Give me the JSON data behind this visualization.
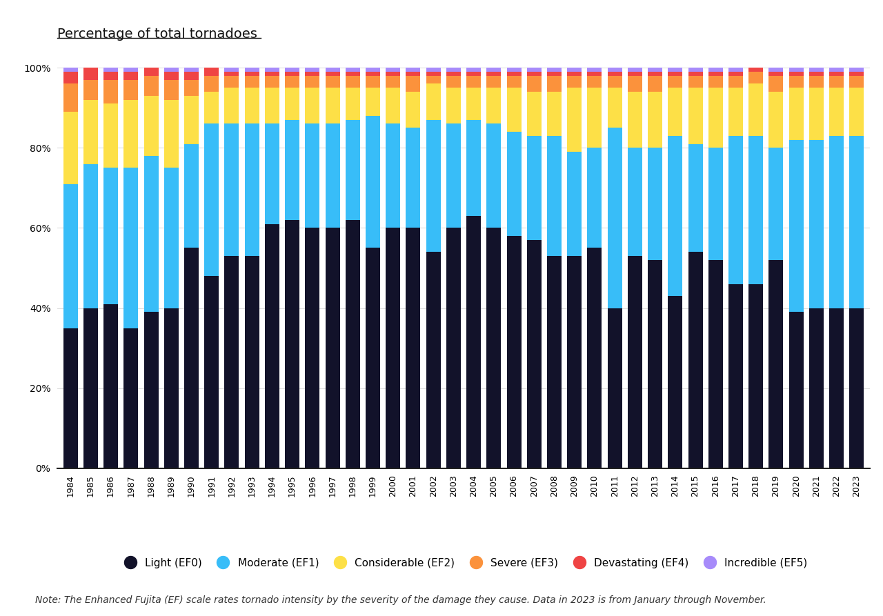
{
  "years": [
    1984,
    1985,
    1986,
    1987,
    1988,
    1989,
    1990,
    1991,
    1992,
    1993,
    1994,
    1995,
    1996,
    1997,
    1998,
    1999,
    2000,
    2001,
    2002,
    2003,
    2004,
    2005,
    2006,
    2007,
    2008,
    2009,
    2010,
    2011,
    2012,
    2013,
    2014,
    2015,
    2016,
    2017,
    2018,
    2019,
    2020,
    2021,
    2022,
    2023
  ],
  "EF0": [
    35,
    40,
    41,
    35,
    39,
    40,
    55,
    48,
    53,
    53,
    61,
    62,
    60,
    60,
    62,
    55,
    60,
    60,
    54,
    60,
    63,
    60,
    58,
    57,
    53,
    53,
    55,
    40,
    53,
    52,
    43,
    54,
    52,
    46,
    46,
    52,
    39,
    40,
    40,
    40
  ],
  "EF1": [
    36,
    36,
    34,
    40,
    39,
    35,
    26,
    38,
    33,
    33,
    25,
    25,
    26,
    26,
    25,
    33,
    26,
    25,
    33,
    26,
    24,
    26,
    26,
    26,
    30,
    26,
    25,
    45,
    27,
    28,
    40,
    27,
    28,
    37,
    37,
    28,
    43,
    42,
    43,
    43
  ],
  "EF2": [
    18,
    16,
    16,
    17,
    15,
    17,
    12,
    8,
    9,
    9,
    9,
    8,
    9,
    9,
    8,
    7,
    9,
    9,
    9,
    9,
    8,
    9,
    11,
    11,
    11,
    16,
    15,
    10,
    14,
    14,
    12,
    14,
    15,
    12,
    13,
    14,
    13,
    13,
    12,
    12
  ],
  "EF3": [
    7,
    5,
    6,
    5,
    5,
    5,
    4,
    4,
    3,
    3,
    3,
    3,
    3,
    3,
    3,
    3,
    3,
    4,
    2,
    3,
    3,
    3,
    3,
    4,
    4,
    3,
    3,
    3,
    4,
    4,
    3,
    3,
    3,
    3,
    3,
    4,
    3,
    3,
    3,
    3
  ],
  "EF4": [
    3,
    3,
    2,
    2,
    2,
    2,
    2,
    2,
    1,
    1,
    1,
    1,
    1,
    1,
    1,
    1,
    1,
    1,
    1,
    1,
    1,
    1,
    1,
    1,
    1,
    1,
    1,
    1,
    1,
    1,
    1,
    1,
    1,
    1,
    1,
    1,
    1,
    1,
    1,
    1
  ],
  "EF5": [
    1,
    0,
    1,
    1,
    0,
    1,
    1,
    0,
    1,
    1,
    1,
    1,
    1,
    1,
    1,
    1,
    1,
    1,
    1,
    1,
    1,
    1,
    1,
    1,
    1,
    1,
    1,
    1,
    1,
    1,
    1,
    1,
    1,
    1,
    0,
    1,
    1,
    1,
    1,
    1
  ],
  "colors": {
    "EF0": "#12122a",
    "EF1": "#38bdf8",
    "EF2": "#fde047",
    "EF3": "#fb923c",
    "EF4": "#ef4444",
    "EF5": "#a78bfa"
  },
  "legend_labels": {
    "EF0": "Light (EF0)",
    "EF1": "Moderate (EF1)",
    "EF2": "Considerable (EF2)",
    "EF3": "Severe (EF3)",
    "EF4": "Devastating (EF4)",
    "EF5": "Incredible (EF5)"
  },
  "ylabel_title": "Percentage of total tornadoes",
  "note": "Note: The Enhanced Fujita (EF) scale rates tornado intensity by the severity of the damage they cause. Data in 2023 is from January through November.",
  "background_color": "#ffffff",
  "title_fontsize": 14,
  "legend_fontsize": 11,
  "note_fontsize": 10,
  "tick_fontsize": 9,
  "ytick_fontsize": 10
}
